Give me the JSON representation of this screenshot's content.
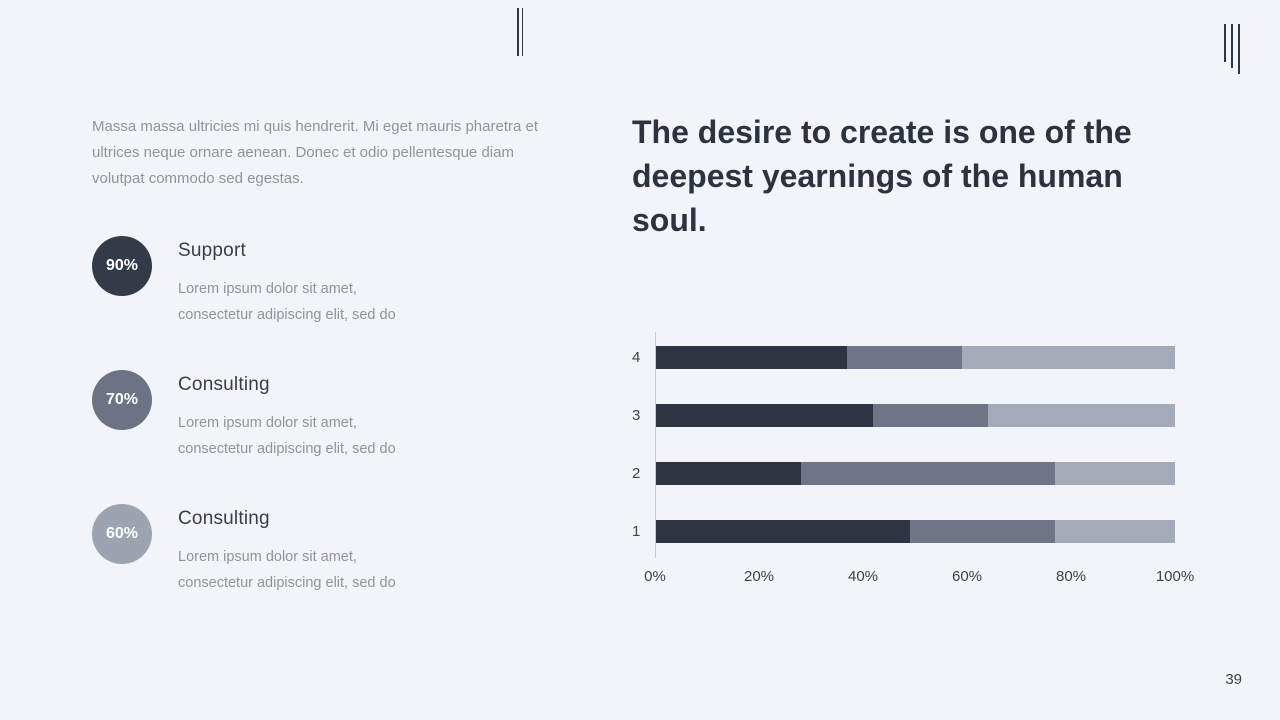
{
  "theme": {
    "background": "#f3f4f9",
    "dark": "#2d3543",
    "medium": "#6d7587",
    "light": "#a2abb7",
    "text_muted": "#8f939c",
    "text_dark": "#343a46"
  },
  "page": {
    "number": "39"
  },
  "left_column": {
    "intro": "Massa massa ultricies mi quis hendrerit. Mi eget mauris pharetra et ultrices neque ornare aenean. Donec et odio pellentesque diam volutpat commodo sed egestas.",
    "items": [
      {
        "percent": "90%",
        "title": "Support",
        "description": "Lorem ipsum dolor sit amet, consectetur adipiscing elit, sed do",
        "color": "#333b49"
      },
      {
        "percent": "70%",
        "title": "Consulting",
        "description": "Lorem ipsum dolor sit amet, consectetur adipiscing elit, sed do",
        "color": "#6b7384"
      },
      {
        "percent": "60%",
        "title": "Consulting",
        "description": "Lorem ipsum dolor sit amet, consectetur adipiscing elit, sed do",
        "color": "#9ba4b0"
      }
    ]
  },
  "right_column": {
    "heading": "The desire to create is one of the deepest yearnings of the human soul."
  },
  "chart_data": {
    "type": "bar",
    "orientation": "horizontal",
    "stacked": true,
    "title": "",
    "categories": [
      "4",
      "3",
      "2",
      "1"
    ],
    "series": [
      {
        "name": "segment-dark",
        "color": "#2d3543",
        "values": [
          37,
          42,
          28,
          49
        ]
      },
      {
        "name": "segment-medium",
        "color": "#6d7587",
        "values": [
          22,
          22,
          49,
          28
        ]
      },
      {
        "name": "segment-light",
        "color": "#a2abb7",
        "values": [
          41,
          36,
          23,
          23
        ]
      }
    ],
    "x_ticks": [
      "0%",
      "20%",
      "40%",
      "60%",
      "80%",
      "100%"
    ],
    "xlim": [
      0,
      100
    ],
    "grid": false,
    "legend": "none"
  }
}
